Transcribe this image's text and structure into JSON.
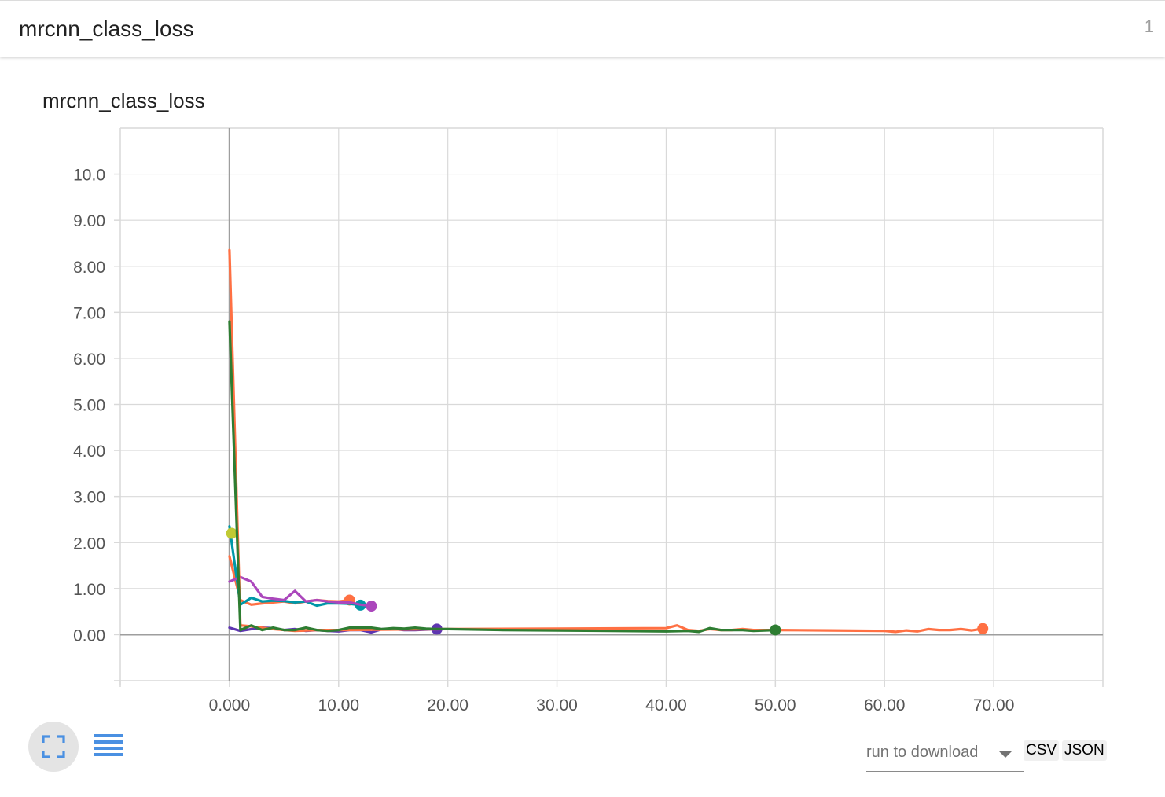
{
  "card": {
    "title": "mrcnn_class_loss",
    "count": "1"
  },
  "toolbar": {
    "fullscreen_icon": "fullscreen-icon",
    "list_icon": "list-icon",
    "run_select_label": "run to download",
    "csv_label": "CSV",
    "json_label": "JSON"
  },
  "colors": {
    "grid": "#d9d9d9",
    "axis_zero": "#9e9e9e"
  },
  "chart_data": {
    "type": "line",
    "title": "mrcnn_class_loss",
    "xlabel": "",
    "ylabel": "",
    "xlim": [
      -10,
      80
    ],
    "ylim": [
      -1,
      11
    ],
    "x_ticks": [
      0,
      10,
      20,
      30,
      40,
      50,
      60,
      70
    ],
    "x_tick_labels": [
      "0.000",
      "10.00",
      "20.00",
      "30.00",
      "40.00",
      "50.00",
      "60.00",
      "70.00"
    ],
    "y_ticks": [
      0,
      1,
      2,
      3,
      4,
      5,
      6,
      7,
      8,
      9,
      10
    ],
    "y_tick_labels": [
      "0.00",
      "1.00",
      "2.00",
      "3.00",
      "4.00",
      "5.00",
      "6.00",
      "7.00",
      "8.00",
      "9.00",
      "10.0"
    ],
    "grid": true,
    "legend": "none",
    "series": [
      {
        "color": "#ff7043",
        "x": [
          0,
          1,
          2,
          3,
          4,
          5,
          6,
          7,
          8,
          9,
          10,
          11
        ],
        "y": [
          1.7,
          0.75,
          0.65,
          0.68,
          0.7,
          0.72,
          0.68,
          0.72,
          0.75,
          0.73,
          0.72,
          0.75
        ]
      },
      {
        "color": "#0097a7",
        "x": [
          0,
          1,
          2,
          3,
          4,
          5,
          6,
          7,
          8,
          9,
          10,
          11,
          12
        ],
        "y": [
          2.35,
          0.65,
          0.8,
          0.72,
          0.74,
          0.73,
          0.7,
          0.72,
          0.63,
          0.68,
          0.68,
          0.67,
          0.64
        ]
      },
      {
        "color": "#ab47bc",
        "x": [
          0,
          1,
          2,
          3,
          4,
          5,
          6,
          7,
          8,
          9,
          10,
          11,
          12,
          13
        ],
        "y": [
          1.15,
          1.25,
          1.15,
          0.82,
          0.78,
          0.75,
          0.95,
          0.72,
          0.75,
          0.72,
          0.7,
          0.7,
          0.65,
          0.62
        ]
      },
      {
        "color": "#c0ca33",
        "x": [
          0,
          0.2
        ],
        "y": [
          2.2,
          2.2
        ]
      },
      {
        "color": "#5e35b1",
        "x": [
          0,
          1,
          2,
          3,
          4,
          5,
          6,
          7,
          8,
          9,
          10,
          11,
          12,
          13,
          14,
          15,
          16,
          17,
          18,
          19
        ],
        "y": [
          0.15,
          0.08,
          0.12,
          0.15,
          0.14,
          0.1,
          0.12,
          0.08,
          0.1,
          0.08,
          0.07,
          0.1,
          0.1,
          0.05,
          0.12,
          0.12,
          0.1,
          0.1,
          0.11,
          0.12
        ]
      },
      {
        "color": "#ff7043",
        "x": [
          0,
          1,
          2,
          4,
          6,
          8,
          10,
          20,
          30,
          40,
          41,
          42,
          43,
          44,
          45,
          46,
          47,
          48,
          49,
          50,
          55,
          60,
          61,
          62,
          63,
          64,
          65,
          66,
          67,
          68,
          69
        ],
        "y": [
          8.35,
          0.2,
          0.18,
          0.12,
          0.08,
          0.1,
          0.1,
          0.12,
          0.13,
          0.14,
          0.2,
          0.1,
          0.08,
          0.12,
          0.1,
          0.1,
          0.12,
          0.1,
          0.1,
          0.1,
          0.09,
          0.08,
          0.06,
          0.09,
          0.07,
          0.12,
          0.1,
          0.1,
          0.12,
          0.09,
          0.13
        ]
      },
      {
        "color": "#2e7d32",
        "x": [
          0,
          1,
          2,
          3,
          4,
          5,
          6,
          7,
          8,
          9,
          10,
          11,
          12,
          13,
          14,
          15,
          16,
          17,
          18,
          19,
          20,
          25,
          30,
          35,
          40,
          42,
          43,
          44,
          45,
          46,
          47,
          48,
          49,
          50
        ],
        "y": [
          6.8,
          0.1,
          0.2,
          0.1,
          0.15,
          0.1,
          0.1,
          0.15,
          0.1,
          0.08,
          0.1,
          0.15,
          0.15,
          0.15,
          0.12,
          0.14,
          0.13,
          0.15,
          0.13,
          0.12,
          0.12,
          0.1,
          0.09,
          0.08,
          0.07,
          0.08,
          0.06,
          0.14,
          0.1,
          0.1,
          0.1,
          0.08,
          0.09,
          0.1
        ]
      }
    ]
  }
}
